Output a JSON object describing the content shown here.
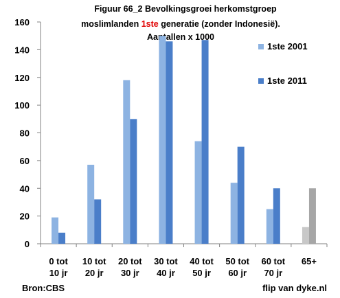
{
  "chart_data": {
    "type": "bar",
    "title_line1": "Figuur 66_2 Bevolkingsgroei herkomstgroep",
    "title_line2_pre": "moslimlanden ",
    "title_line2_highlight": "1ste",
    "title_line2_post": " generatie (zonder Indonesië).",
    "title_line3": "Aantallen x 1000",
    "categories": [
      [
        "0 tot",
        "10 jr"
      ],
      [
        "10 tot",
        "20 jr"
      ],
      [
        "20 tot",
        "30 jr"
      ],
      [
        "30 tot",
        "40 jr"
      ],
      [
        "40 tot",
        "50 jr"
      ],
      [
        "50 tot",
        "60 jr"
      ],
      [
        "60 tot",
        "70 jr"
      ],
      [
        "65+",
        ""
      ]
    ],
    "series": [
      {
        "name": "1ste 2001",
        "values": [
          19,
          57,
          118,
          150,
          74,
          44,
          25,
          12
        ],
        "color": "#8db3e2"
      },
      {
        "name": "1ste 2011",
        "values": [
          8,
          32,
          90,
          146,
          147,
          70,
          40,
          40
        ],
        "color": "#4a7ec9"
      }
    ],
    "last_category_colors": [
      "#c8c8c8",
      "#a6a6a6"
    ],
    "ylim": [
      0,
      160
    ],
    "yticks": [
      0,
      20,
      40,
      60,
      80,
      100,
      120,
      140,
      160
    ],
    "grid": false,
    "legend_placement": "right",
    "source": "Bron:CBS",
    "credit": "flip van dyke.nl"
  }
}
